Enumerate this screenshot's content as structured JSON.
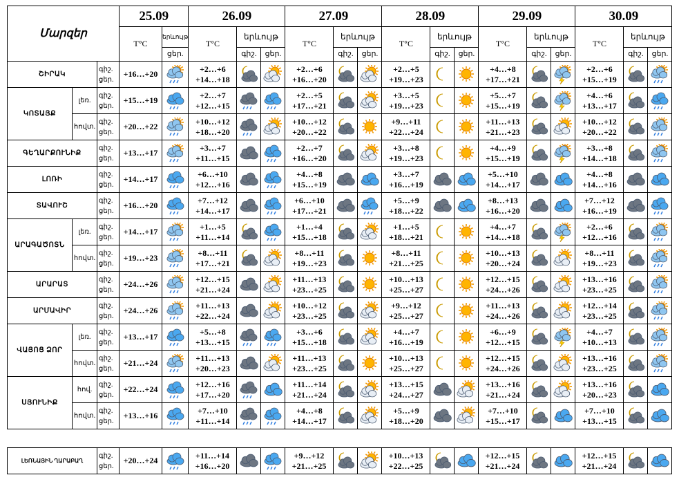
{
  "header": {
    "title": "Մարզեր",
    "columns": [
      {
        "date": "25.09",
        "temp": "T°C",
        "phen": "երևույթ",
        "parts": [
          "ցեր."
        ]
      },
      {
        "date": "26.09",
        "temp": "T°C",
        "phen": "երևույթ",
        "parts": [
          "գիշ.",
          "ցեր."
        ]
      },
      {
        "date": "27.09",
        "temp": "T°C",
        "phen": "երևույթ",
        "parts": [
          "գիշ.",
          "ցեր."
        ]
      },
      {
        "date": "28.09",
        "temp": "T°C",
        "phen": "երևույթ",
        "parts": [
          "գիշ.",
          "ցեր."
        ]
      },
      {
        "date": "29.09",
        "temp": "T°C",
        "phen": "երևույթ",
        "parts": [
          "գիշ.",
          "ցեր."
        ]
      },
      {
        "date": "30.09",
        "temp": "T°C",
        "phen": "երևույթ",
        "parts": [
          "գիշ.",
          "ցեր."
        ]
      }
    ]
  },
  "regions": [
    {
      "name": "ՇԻՐԱԿ",
      "rows": [
        {
          "labels": [
            "գիշ.",
            "ցեր."
          ],
          "today": "+16…+20",
          "forecast": [
            [
              "+2…+6",
              "+14…+18"
            ],
            [
              "+2…+6",
              "+16…+20"
            ],
            [
              "+2…+5",
              "+19…+23"
            ],
            [
              "+4…+8",
              "+17…+21"
            ],
            [
              "+2…+6",
              "+15…+19"
            ]
          ]
        }
      ]
    },
    {
      "name": "ԿՈՏԱՅՔ",
      "rows": [
        {
          "zone": "լեռ.",
          "labels": [
            "գիշ.",
            "ցեր."
          ],
          "today": "+15…+19",
          "forecast": [
            [
              "+2…+7",
              "+12…+15"
            ],
            [
              "+2…+5",
              "+17…+21"
            ],
            [
              "+3…+5",
              "+19…+23"
            ],
            [
              "+5…+7",
              "+15…+19"
            ],
            [
              "+4…+6",
              "+13…+17"
            ]
          ]
        },
        {
          "zone": "հովտ.",
          "labels": [
            "գիշ.",
            "ցեր."
          ],
          "today": "+20…+22",
          "forecast": [
            [
              "+10…+12",
              "+18…+20"
            ],
            [
              "+10…+12",
              "+20…+22"
            ],
            [
              "+9…+11",
              "+22…+24"
            ],
            [
              "+11…+13",
              "+21…+23"
            ],
            [
              "+10…+12",
              "+20…+22"
            ]
          ]
        }
      ]
    },
    {
      "name": "ԳԵՂԱՐՔՈՒՆԻՔ",
      "rows": [
        {
          "labels": [
            "գիշ.",
            "ցեր."
          ],
          "today": "+13…+17",
          "forecast": [
            [
              "+3…+7",
              "+11…+15"
            ],
            [
              "+2…+7",
              "+16…+20"
            ],
            [
              "+3…+8",
              "+19…+23"
            ],
            [
              "+4…+9",
              "+15…+19"
            ],
            [
              "+3…+8",
              "+14…+18"
            ]
          ]
        }
      ]
    },
    {
      "name": "ԼՈՌԻ",
      "rows": [
        {
          "labels": [
            "գիշ.",
            "ցեր."
          ],
          "today": "+14…+17",
          "forecast": [
            [
              "+6…+10",
              "+12…+16"
            ],
            [
              "+4…+8",
              "+15…+19"
            ],
            [
              "+3…+7",
              "+16…+19"
            ],
            [
              "+5…+10",
              "+14…+17"
            ],
            [
              "+4…+8",
              "+14…+16"
            ]
          ]
        }
      ]
    },
    {
      "name": "ՏԱՎՈՒՇ",
      "rows": [
        {
          "labels": [
            "գիշ.",
            "ցեր."
          ],
          "today": "+16…+20",
          "forecast": [
            [
              "+7…+12",
              "+14…+17"
            ],
            [
              "+6…+10",
              "+17…+21"
            ],
            [
              "+5…+9",
              "+18…+22"
            ],
            [
              "+8…+13",
              "+16…+20"
            ],
            [
              "+7…+12",
              "+16…+19"
            ]
          ]
        }
      ]
    },
    {
      "name": "ԱՐԱԳԱԾՈՏՆ",
      "rows": [
        {
          "zone": "լեռ.",
          "labels": [
            "գիշ.",
            "ցեր."
          ],
          "today": "+14…+17",
          "forecast": [
            [
              "+1…+5",
              "+11…+14"
            ],
            [
              "+1…+4",
              "+15…+18"
            ],
            [
              "+1…+5",
              "+18…+21"
            ],
            [
              "+4…+7",
              "+14…+18"
            ],
            [
              "+2…+6",
              "+12…+16"
            ]
          ]
        },
        {
          "zone": "հովտ.",
          "labels": [
            "գիշ.",
            "ցեր."
          ],
          "today": "+19…+23",
          "forecast": [
            [
              "+8…+11",
              "+17…+21"
            ],
            [
              "+8…+11",
              "+19…+23"
            ],
            [
              "+8…+11",
              "+21…+25"
            ],
            [
              "+10…+13",
              "+20…+24"
            ],
            [
              "+8…+11",
              "+19…+23"
            ]
          ]
        }
      ]
    },
    {
      "name": "ԱՐԱՐԱՏ",
      "rows": [
        {
          "labels": [
            "գիշ.",
            "ցեր."
          ],
          "today": "+24…+26",
          "forecast": [
            [
              "+12…+15",
              "+21…+24"
            ],
            [
              "+11…+13",
              "+23…+25"
            ],
            [
              "+10…+13",
              "+25…+27"
            ],
            [
              "+12…+15",
              "+24…+26"
            ],
            [
              "+13…+16",
              "+23…+25"
            ]
          ]
        }
      ]
    },
    {
      "name": "ԱՐՄԱՎԻՐ",
      "rows": [
        {
          "labels": [
            "գիշ.",
            "ցեր."
          ],
          "today": "+24…+26",
          "forecast": [
            [
              "+11…+13",
              "+22…+24"
            ],
            [
              "+10…+12",
              "+23…+25"
            ],
            [
              "+9…+12",
              "+25…+27"
            ],
            [
              "+11…+13",
              "+24…+26"
            ],
            [
              "+12…+14",
              "+23…+25"
            ]
          ]
        }
      ]
    },
    {
      "name": "ՎԱՅՈՑ ՁՈՐ",
      "rows": [
        {
          "zone": "լեռ.",
          "labels": [
            "գիշ.",
            "ցեր."
          ],
          "today": "+13…+17",
          "forecast": [
            [
              "+5…+8",
              "+13…+15"
            ],
            [
              "+3…+6",
              "+15…+18"
            ],
            [
              "+4…+7",
              "+16…+19"
            ],
            [
              "+6…+9",
              "+12…+15"
            ],
            [
              "+4…+7",
              "+10…+13"
            ]
          ]
        },
        {
          "zone": "հովտ.",
          "labels": [
            "գիշ.",
            "ցեր."
          ],
          "today": "+21…+24",
          "forecast": [
            [
              "+11…+13",
              "+20…+23"
            ],
            [
              "+11…+13",
              "+23…+25"
            ],
            [
              "+10…+13",
              "+25…+27"
            ],
            [
              "+12…+15",
              "+24…+26"
            ],
            [
              "+13…+16",
              "+23…+25"
            ]
          ]
        }
      ]
    },
    {
      "name": "ՍՅՈՒՆԻՔ",
      "rows": [
        {
          "zone": "հով.",
          "labels": [
            "գիշ.",
            "ցեր."
          ],
          "today": "+22…+24",
          "forecast": [
            [
              "+12…+16",
              "+17…+20"
            ],
            [
              "+11…+14",
              "+21…+24"
            ],
            [
              "+13…+15",
              "+24…+27"
            ],
            [
              "+13…+16",
              "+21…+24"
            ],
            [
              "+13…+16",
              "+20…+23"
            ]
          ]
        },
        {
          "zone": "հովտ.",
          "labels": [
            "գիշ.",
            "ցեր."
          ],
          "today": "+13…+16",
          "forecast": [
            [
              "+7…+10",
              "+11…+14"
            ],
            [
              "+4…+8",
              "+14…+17"
            ],
            [
              "+5…+9",
              "+18…+20"
            ],
            [
              "+7…+10",
              "+15…+17"
            ],
            [
              "+7…+10",
              "+13…+15"
            ]
          ]
        }
      ]
    }
  ],
  "karabakh": {
    "name": "ԼԵՌՆԱՅԻՆ ՂԱՐԱԲԱՂ",
    "labels": [
      "գիշ.",
      "ցեր."
    ],
    "today": "+20…+24",
    "forecast": [
      [
        "+11…+14",
        "+16…+20"
      ],
      [
        "+9…+12",
        "+21…+25"
      ],
      [
        "+10…+13",
        "+22…+25"
      ],
      [
        "+12…+15",
        "+21…+24"
      ],
      [
        "+12…+15",
        "+21…+24"
      ]
    ]
  }
}
